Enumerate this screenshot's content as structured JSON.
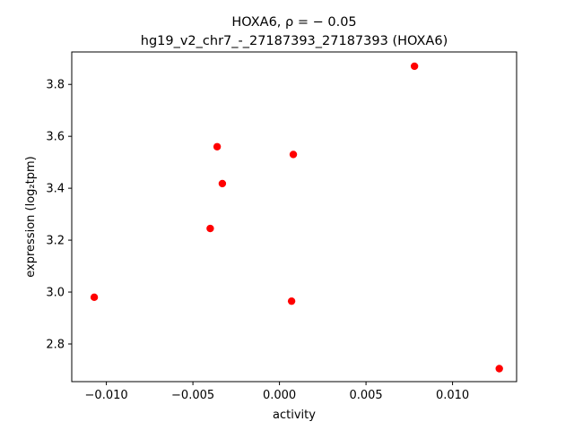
{
  "chart_data": {
    "type": "scatter",
    "title_line1": "HOXA6, ρ = − 0.05",
    "title_line2": "hg19_v2_chr7_-_27187393_27187393 (HOXA6)",
    "xlabel": "activity",
    "ylabel": "expression (log₂tpm)",
    "xlim": [
      -0.012,
      0.0137
    ],
    "ylim": [
      2.655,
      3.925
    ],
    "xticks": [
      -0.01,
      -0.005,
      0.0,
      0.005,
      0.01
    ],
    "xtick_labels": [
      "−0.010",
      "−0.005",
      "0.000",
      "0.005",
      "0.010"
    ],
    "yticks": [
      2.8,
      3.0,
      3.2,
      3.4,
      3.6,
      3.8
    ],
    "ytick_labels": [
      "2.8",
      "3.0",
      "3.2",
      "3.4",
      "3.6",
      "3.8"
    ],
    "grid": false,
    "point_color": "#ff0000",
    "points": [
      {
        "x": -0.0107,
        "y": 2.98
      },
      {
        "x": -0.004,
        "y": 3.245
      },
      {
        "x": -0.0036,
        "y": 3.56
      },
      {
        "x": -0.0033,
        "y": 3.418
      },
      {
        "x": 0.0007,
        "y": 2.965
      },
      {
        "x": 0.0008,
        "y": 3.53
      },
      {
        "x": 0.0078,
        "y": 3.87
      },
      {
        "x": 0.0127,
        "y": 2.705
      }
    ]
  }
}
